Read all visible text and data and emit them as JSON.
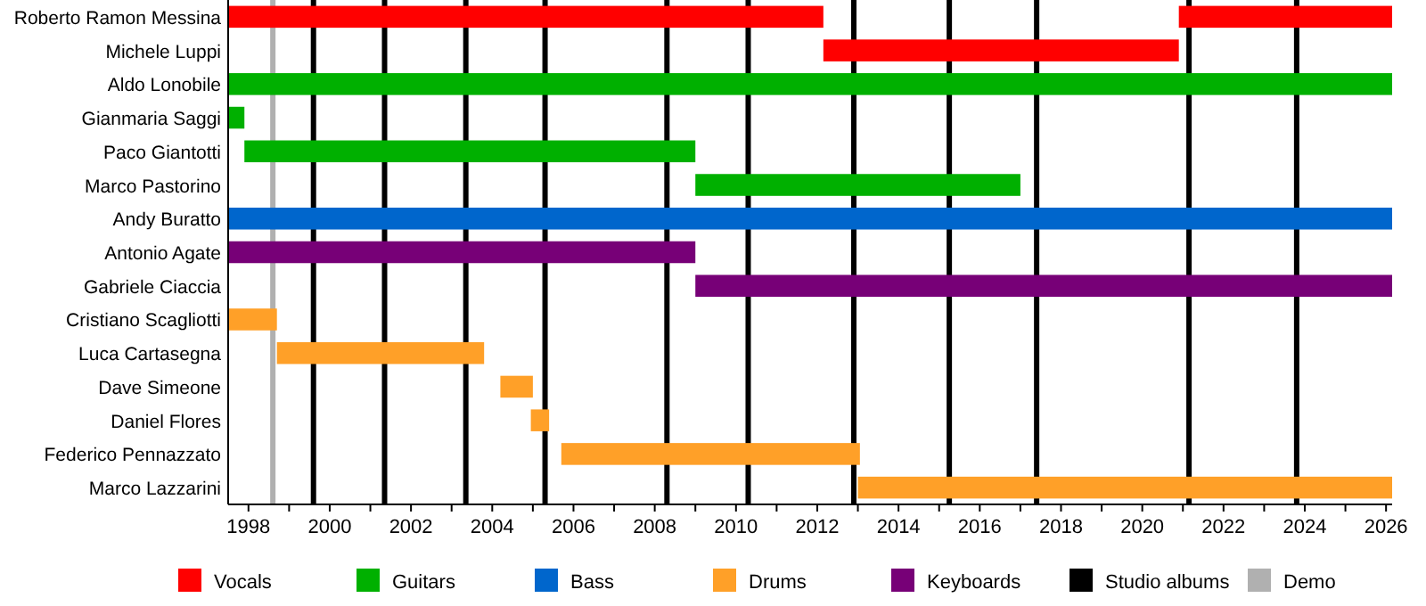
{
  "chart_data": {
    "type": "bar",
    "orientation": "horizontal",
    "categories": [
      "Roberto Ramon Messina",
      "Michele Luppi",
      "Aldo Lonobile",
      "Gianmaria Saggi",
      "Paco Giantotti",
      "Marco Pastorino",
      "Andy Buratto",
      "Antonio Agate",
      "Gabriele Ciaccia",
      "Cristiano Scagliotti",
      "Luca Cartasegna",
      "Dave Simeone",
      "Daniel Flores",
      "Federico Pennazzato",
      "Marco Lazzarini"
    ],
    "series": [
      {
        "name": "Vocals",
        "color": "#ff0000",
        "base": [
          1997.5,
          2012.15,
          null,
          null,
          null,
          null,
          null,
          null,
          null,
          null,
          null,
          null,
          null,
          null,
          null
        ],
        "values": [
          14.65,
          8.75,
          null,
          null,
          null,
          null,
          null,
          null,
          null,
          null,
          null,
          null,
          null,
          null,
          null
        ]
      },
      {
        "color": "#ff0000",
        "base": [
          2020.9,
          null,
          null,
          null,
          null,
          null,
          null,
          null,
          null,
          null,
          null,
          null,
          null,
          null,
          null
        ],
        "values": [
          5.25,
          null,
          null,
          null,
          null,
          null,
          null,
          null,
          null,
          null,
          null,
          null,
          null,
          null,
          null
        ]
      },
      {
        "name": "Guitars",
        "color": "#00b000",
        "base": [
          null,
          null,
          1997.5,
          1997.5,
          1997.9,
          2009,
          null,
          null,
          null,
          null,
          null,
          null,
          null,
          null,
          null
        ],
        "values": [
          null,
          null,
          28.65,
          0.4,
          11.1,
          8,
          null,
          null,
          null,
          null,
          null,
          null,
          null,
          null,
          null
        ]
      },
      {
        "name": "Bass",
        "color": "#0066cc",
        "base": [
          null,
          null,
          null,
          null,
          null,
          null,
          1997.5,
          null,
          null,
          null,
          null,
          null,
          null,
          null,
          null
        ],
        "values": [
          null,
          null,
          null,
          null,
          null,
          null,
          28.65,
          null,
          null,
          null,
          null,
          null,
          null,
          null,
          null
        ]
      },
      {
        "name": "Drums",
        "color": "#ffa028",
        "base": [
          null,
          null,
          null,
          null,
          null,
          null,
          null,
          null,
          null,
          1997.5,
          1998.7,
          2004.2,
          2004.95,
          2005.7,
          2013
        ],
        "values": [
          null,
          null,
          null,
          null,
          null,
          null,
          null,
          null,
          null,
          1.2,
          5.1,
          0.8,
          0.45,
          7.35,
          13.15
        ]
      },
      {
        "name": "Keyboards",
        "color": "#770077",
        "base": [
          null,
          null,
          null,
          null,
          null,
          null,
          null,
          1997.5,
          2009,
          null,
          null,
          null,
          null,
          null,
          null
        ],
        "values": [
          null,
          null,
          null,
          null,
          null,
          null,
          null,
          11.5,
          17.15,
          null,
          null,
          null,
          null,
          null,
          null
        ]
      }
    ],
    "ref_lines": [
      {
        "axis": "x",
        "value": 1999.6,
        "label": "Studio albums",
        "color": "#000000"
      },
      {
        "axis": "x",
        "value": 2001.35,
        "color": "#000000"
      },
      {
        "axis": "x",
        "value": 2003.35,
        "color": "#000000"
      },
      {
        "axis": "x",
        "value": 2005.3,
        "color": "#000000"
      },
      {
        "axis": "x",
        "value": 2008.3,
        "color": "#000000"
      },
      {
        "axis": "x",
        "value": 2010.3,
        "color": "#000000"
      },
      {
        "axis": "x",
        "value": 2012.9,
        "color": "#000000"
      },
      {
        "axis": "x",
        "value": 2015.25,
        "color": "#000000"
      },
      {
        "axis": "x",
        "value": 2017.4,
        "color": "#000000"
      },
      {
        "axis": "x",
        "value": 2021.15,
        "color": "#000000"
      },
      {
        "axis": "x",
        "value": 2023.8,
        "color": "#000000"
      },
      {
        "axis": "x",
        "value": 1998.6,
        "label": "Demo",
        "color": "#b0b0b0"
      }
    ],
    "xlim": [
      1997.5,
      2026.15
    ],
    "xticks": [
      1998,
      {
        "value": 1999,
        "label": null
      },
      2000,
      {
        "value": 2001,
        "label": null
      },
      2002,
      {
        "value": 2003,
        "label": null
      },
      2004,
      {
        "value": 2005,
        "label": null
      },
      2006,
      {
        "value": 2007,
        "label": null
      },
      2008,
      {
        "value": 2009,
        "label": null
      },
      2010,
      {
        "value": 2011,
        "label": null
      },
      2012,
      {
        "value": 2013,
        "label": null
      },
      2014,
      {
        "value": 2015,
        "label": null
      },
      2016,
      {
        "value": 2017,
        "label": null
      },
      2018,
      {
        "value": 2019,
        "label": null
      },
      2020,
      {
        "value": 2021,
        "label": null
      },
      2022,
      {
        "value": 2023,
        "label": null
      },
      2024,
      {
        "value": 2025,
        "label": null
      },
      2026
    ],
    "legend": "bottom"
  }
}
